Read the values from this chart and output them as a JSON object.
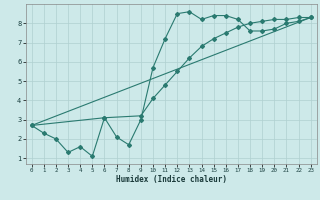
{
  "xlabel": "Humidex (Indice chaleur)",
  "ylabel": "",
  "xlim": [
    -0.5,
    23.5
  ],
  "ylim": [
    0.7,
    9.0
  ],
  "yticks": [
    1,
    2,
    3,
    4,
    5,
    6,
    7,
    8
  ],
  "xticks": [
    0,
    1,
    2,
    3,
    4,
    5,
    6,
    7,
    8,
    9,
    10,
    11,
    12,
    13,
    14,
    15,
    16,
    17,
    18,
    19,
    20,
    21,
    22,
    23
  ],
  "background_color": "#cde9e9",
  "grid_color": "#b0d0d0",
  "line_color": "#2a7a70",
  "line1_x": [
    0,
    1,
    2,
    3,
    4,
    5,
    6,
    7,
    8,
    9,
    10,
    11,
    12,
    13,
    14,
    15,
    16,
    17,
    18,
    19,
    20,
    21,
    22,
    23
  ],
  "line1_y": [
    2.7,
    2.3,
    2.0,
    1.3,
    1.6,
    1.1,
    3.1,
    2.1,
    1.7,
    3.0,
    5.7,
    7.2,
    8.5,
    8.6,
    8.2,
    8.4,
    8.4,
    8.2,
    7.6,
    7.6,
    7.7,
    8.0,
    8.1,
    8.3
  ],
  "line2_x": [
    0,
    6,
    9,
    10,
    11,
    12,
    13,
    14,
    15,
    16,
    17,
    18,
    19,
    20,
    21,
    22,
    23
  ],
  "line2_y": [
    2.7,
    3.1,
    3.2,
    4.1,
    4.8,
    5.5,
    6.2,
    6.8,
    7.2,
    7.5,
    7.8,
    8.0,
    8.1,
    8.2,
    8.2,
    8.3,
    8.3
  ],
  "line3_x": [
    0,
    23
  ],
  "line3_y": [
    2.7,
    8.3
  ]
}
